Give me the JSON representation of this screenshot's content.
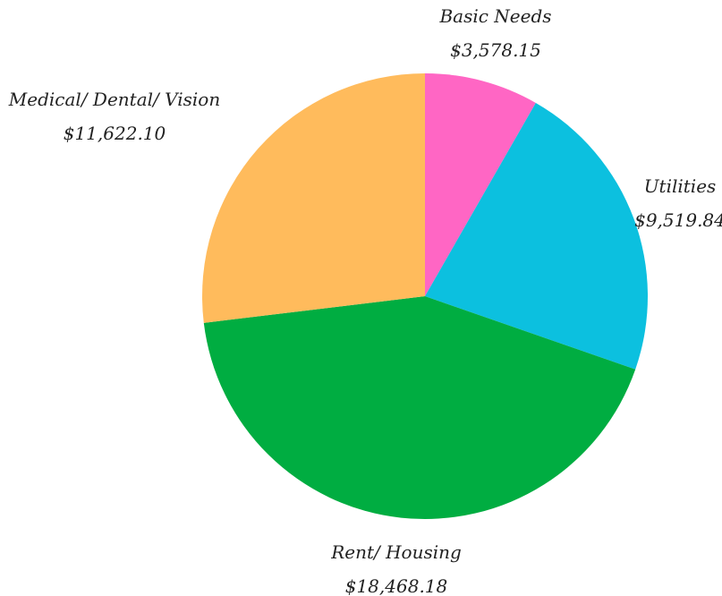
{
  "chart_data": {
    "type": "pie",
    "title": "",
    "start_angle_deg": 0,
    "direction": "clockwise",
    "legend": "none",
    "slices": [
      {
        "label": "Basic Needs",
        "value_label": "$3,578.15",
        "value": 3578.15,
        "color": "#ff66c4"
      },
      {
        "label": "Utilities",
        "value_label": "$9,519.84",
        "value": 9519.84,
        "color": "#0cc0df"
      },
      {
        "label": "Rent/ Housing",
        "value_label": "$18,468.18",
        "value": 18468.18,
        "color": "#00ad41"
      },
      {
        "label": "Medical/ Dental/ Vision",
        "value_label": "$11,622.10",
        "value": 11622.1,
        "color": "#ffbb5c"
      }
    ]
  }
}
